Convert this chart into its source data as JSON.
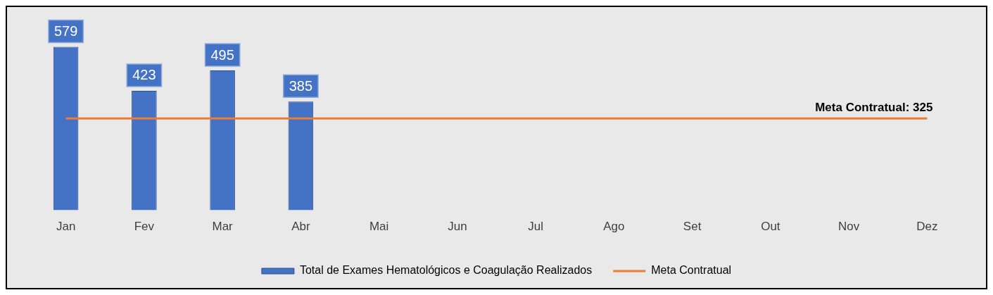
{
  "chart_data": {
    "type": "bar",
    "categories": [
      "Jan",
      "Fev",
      "Mar",
      "Abr",
      "Mai",
      "Jun",
      "Jul",
      "Ago",
      "Set",
      "Out",
      "Nov",
      "Dez"
    ],
    "legend": "bottom",
    "grid": false,
    "series": [
      {
        "name": "Total de Exames Hematológicos e Coagulação Realizados",
        "color": "#4472c4",
        "values": [
          579,
          423,
          495,
          385,
          null,
          null,
          null,
          null,
          null,
          null,
          null,
          null
        ],
        "value_labels": [
          "579",
          "423",
          "495",
          "385",
          null,
          null,
          null,
          null,
          null,
          null,
          null,
          null
        ]
      },
      {
        "name": "Meta Contratual",
        "type": "line",
        "color": "#ed7d31",
        "values": [
          325,
          325,
          325,
          325,
          325,
          325,
          325,
          325,
          325,
          325,
          325,
          325
        ]
      }
    ],
    "annotations": [
      {
        "text": "Meta Contratual: 325",
        "x": "Dez",
        "y": 325
      }
    ]
  }
}
